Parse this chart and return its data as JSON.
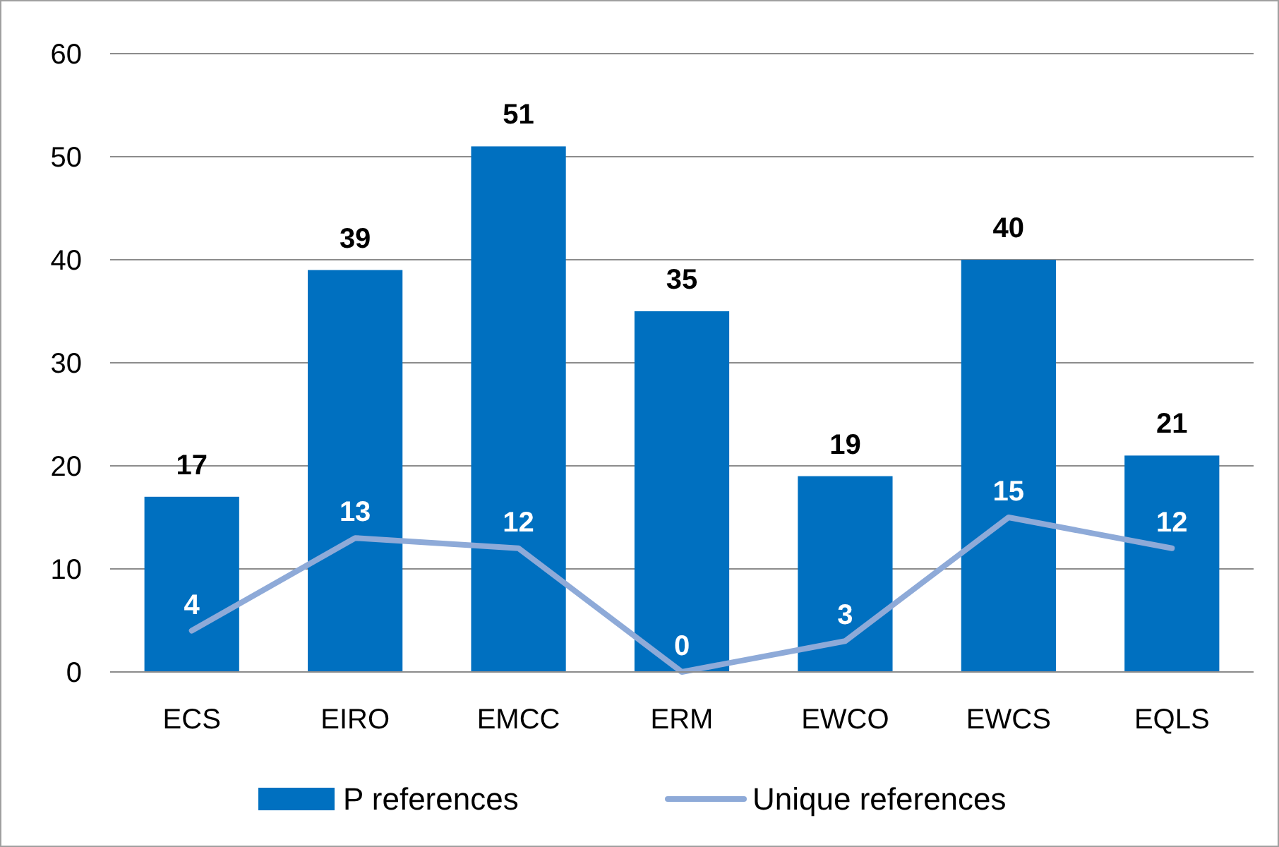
{
  "chart_data": {
    "type": "bar",
    "categories": [
      "ECS",
      "EIRO",
      "EMCC",
      "ERM",
      "EWCO",
      "EWCS",
      "EQLS"
    ],
    "series": [
      {
        "name": "P references",
        "color": "#0070c0",
        "values": [
          17,
          39,
          51,
          35,
          19,
          40,
          21
        ]
      },
      {
        "name": "Unique references",
        "type": "line",
        "color": "#8eaad8",
        "values": [
          4,
          13,
          12,
          0,
          3,
          15,
          12
        ]
      }
    ],
    "ylim": [
      0,
      60
    ],
    "yticks": [
      0,
      10,
      20,
      30,
      40,
      50,
      60
    ],
    "grid": "y",
    "legend": "bottom",
    "data_labels": true,
    "marker": "none"
  }
}
